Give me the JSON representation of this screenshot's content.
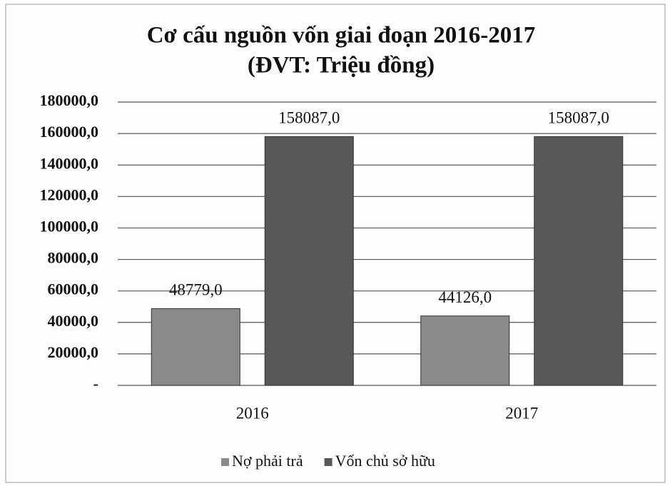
{
  "chart_data": {
    "type": "bar",
    "title": "Cơ cấu nguồn vốn giai đoạn 2016-2017",
    "subtitle": "(ĐVT: Triệu đồng)",
    "categories": [
      "2016",
      "2017"
    ],
    "series": [
      {
        "name": "Nợ phải trả",
        "color": "#8a8a8a",
        "values": [
          48779,
          44126
        ],
        "value_labels": [
          "48779,0",
          "44126,0"
        ]
      },
      {
        "name": "Vốn chủ sở hữu",
        "color": "#585858",
        "values": [
          158087,
          158087
        ],
        "value_labels": [
          "158087,0",
          "158087,0"
        ]
      }
    ],
    "ylim": [
      0,
      180000
    ],
    "yticks": [
      {
        "value": 0,
        "label": "-"
      },
      {
        "value": 20000,
        "label": "20000,0"
      },
      {
        "value": 40000,
        "label": "40000,0"
      },
      {
        "value": 60000,
        "label": "60000,0"
      },
      {
        "value": 80000,
        "label": "80000,0"
      },
      {
        "value": 100000,
        "label": "100000,0"
      },
      {
        "value": 120000,
        "label": "120000,0"
      },
      {
        "value": 140000,
        "label": "140000,0"
      },
      {
        "value": 160000,
        "label": "160000,0"
      },
      {
        "value": 180000,
        "label": "180000,0"
      }
    ],
    "grid": true,
    "legend": "bottom"
  }
}
